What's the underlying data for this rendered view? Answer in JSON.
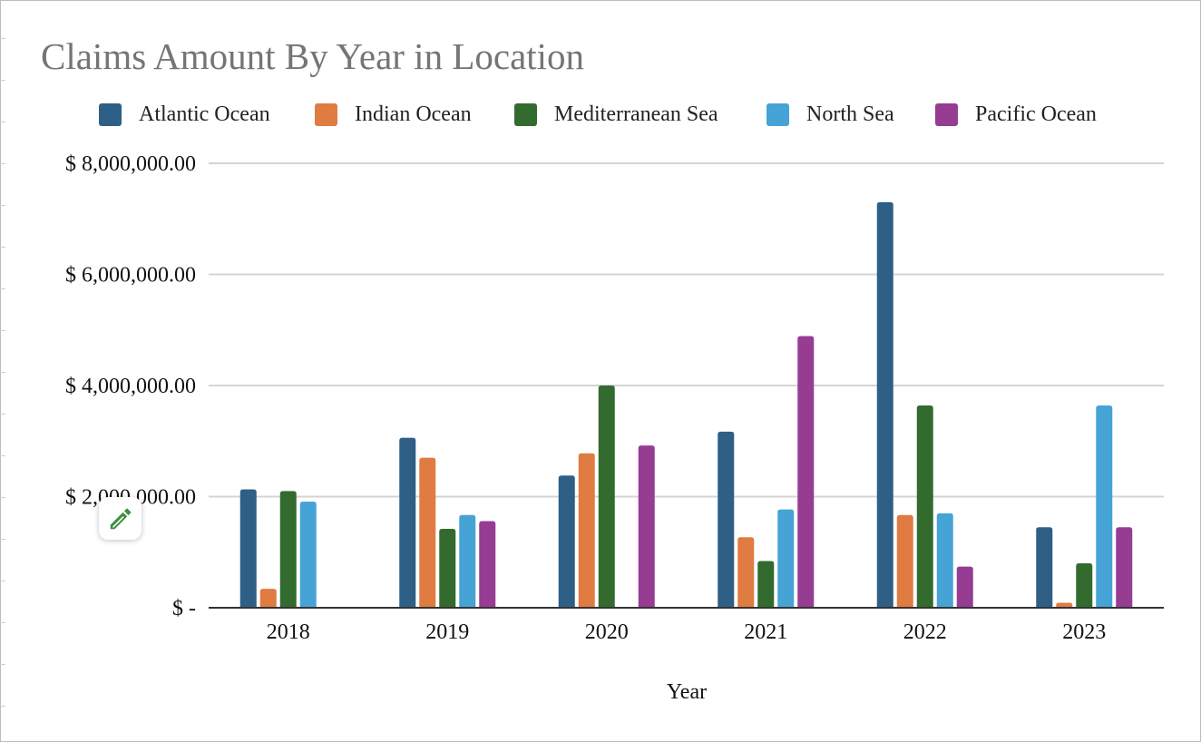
{
  "colors": {
    "atlantic": "#2e5f86",
    "indian": "#e07b41",
    "mediterranean": "#336b2f",
    "north": "#46a3d6",
    "pacific": "#963c93",
    "gridline": "#d4d4d4",
    "axis": "#333333",
    "edit_icon": "#3e8e41"
  },
  "edit_button": {
    "icon": "pencil-icon"
  },
  "chart_data": {
    "type": "bar",
    "title": "Claims Amount By Year in Location",
    "xlabel": "Year",
    "ylabel": "",
    "categories": [
      "2018",
      "2019",
      "2020",
      "2021",
      "2022",
      "2023"
    ],
    "ylim": [
      0,
      8000000
    ],
    "yticks": [
      0,
      2000000,
      4000000,
      6000000,
      8000000
    ],
    "ytick_labels": [
      "$ -",
      "$ 2,000,000.00",
      "$ 4,000,000.00",
      "$ 6,000,000.00",
      "$ 8,000,000.00"
    ],
    "grid": true,
    "legend_position": "top",
    "series": [
      {
        "name": "Atlantic Ocean",
        "color": "#2e5f86",
        "values": [
          2130000,
          3060000,
          2380000,
          3170000,
          7300000,
          1450000
        ]
      },
      {
        "name": "Indian Ocean",
        "color": "#e07b41",
        "values": [
          340000,
          2700000,
          2780000,
          1270000,
          1670000,
          90000
        ]
      },
      {
        "name": "Mediterranean Sea",
        "color": "#336b2f",
        "values": [
          2100000,
          1420000,
          4000000,
          840000,
          3640000,
          800000
        ]
      },
      {
        "name": "North Sea",
        "color": "#46a3d6",
        "values": [
          1910000,
          1670000,
          0,
          1770000,
          1700000,
          3640000
        ]
      },
      {
        "name": "Pacific Ocean",
        "color": "#963c93",
        "values": [
          0,
          1560000,
          2920000,
          4890000,
          740000,
          1450000
        ]
      }
    ]
  }
}
